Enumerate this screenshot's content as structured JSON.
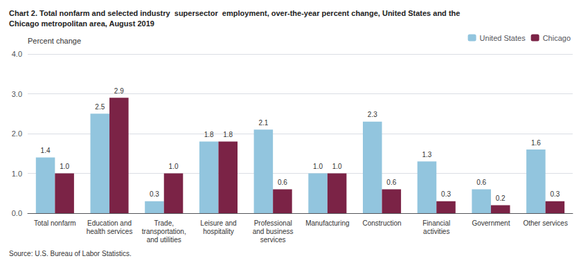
{
  "chart_data": {
    "type": "bar",
    "title": "Chart 2. Total nonfarm and selected industry  supersector  employment, over-the-year percent change, United States and the\nChicago metropolitan area, August 2019",
    "ylabel": "Percent change",
    "source": "Source: U.S. Bureau of Labor Statistics.",
    "categories": [
      "Total nonfarm",
      "Education and\nhealth services",
      "Trade,\ntransportation,\nand utilities",
      "Leisure and\nhospitality",
      "Professional\nand business\nservices",
      "Manufacturing",
      "Construction",
      "Financial\nactivities",
      "Government",
      "Other services"
    ],
    "series": [
      {
        "name": "United States",
        "color": "#92C5DE",
        "values": [
          1.4,
          2.5,
          0.3,
          1.8,
          2.1,
          1.0,
          2.3,
          1.3,
          0.6,
          1.6
        ],
        "value_labels": [
          "1.4",
          "2.5",
          "0.3",
          "1.8",
          "2.1",
          "1.0",
          "2.3",
          "1.3",
          "0.6",
          "1.6"
        ]
      },
      {
        "name": "Chicago",
        "color": "#7B2346",
        "values": [
          1.0,
          2.9,
          1.0,
          1.8,
          0.6,
          1.0,
          0.6,
          0.3,
          0.2,
          0.3
        ],
        "value_labels": [
          "1.0",
          "2.9",
          "1.0",
          "1.8",
          "0.6",
          "1.0",
          "0.6",
          "0.3",
          "0.2",
          "0.3"
        ]
      }
    ],
    "ylim": [
      0.0,
      4.0
    ],
    "yticks": [
      {
        "value": 0.0,
        "label": "0.0"
      },
      {
        "value": 1.0,
        "label": "1.0"
      },
      {
        "value": 2.0,
        "label": "2.0"
      },
      {
        "value": 3.0,
        "label": "3.0"
      },
      {
        "value": 4.0,
        "label": "4.0"
      }
    ],
    "grid": true,
    "legend": "upper right",
    "data_labels": true
  }
}
